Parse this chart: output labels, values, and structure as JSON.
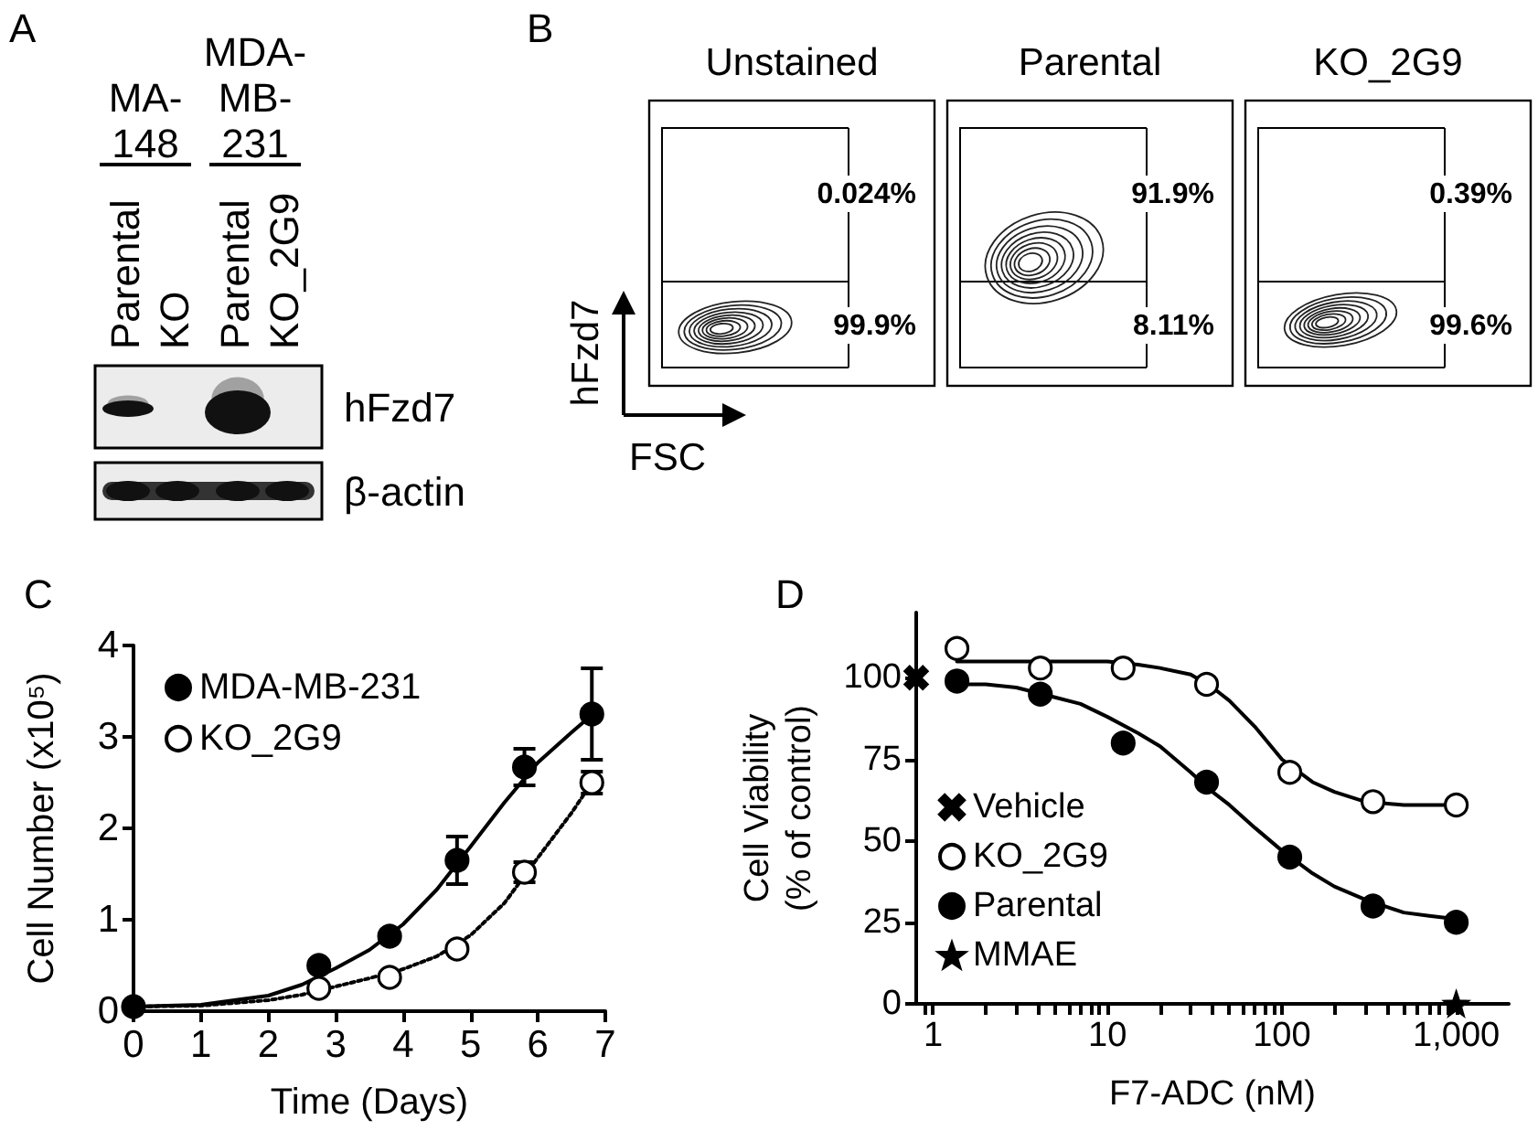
{
  "chart_data": [
    {
      "type": "other",
      "title": "A",
      "categories": [
        "Parental",
        "KO",
        "Parental",
        "KO_2G9"
      ],
      "annotations": [
        "MA-148",
        "MDA-MB-231",
        "hFzd7",
        "β-actin"
      ]
    },
    {
      "type": "other",
      "title": "B",
      "categories": [
        "Unstained",
        "Parental",
        "KO_2G9"
      ],
      "xlabel": "FSC",
      "ylabel": "hFzd7",
      "annotations": [
        "0.024%",
        "99.9%",
        "91.9%",
        "8.11%",
        "0.39%",
        "99.6%"
      ]
    },
    {
      "type": "scatter",
      "title": "C",
      "xlabel": "Time (Days)",
      "ylabel": "Cell Number (x10⁵)",
      "xlim": [
        0,
        7
      ],
      "ylim": [
        0,
        4
      ],
      "xticks": [
        0,
        1,
        2,
        3,
        4,
        5,
        6,
        7
      ],
      "yticks": [
        0,
        1,
        2,
        3,
        4
      ],
      "legend": "top left",
      "series": [
        {
          "name": "MDA-MB-231",
          "type": "scatter",
          "color": "#000000",
          "marker": "circle",
          "x": [
            0,
            2.75,
            3.8,
            4.8,
            5.8,
            6.8
          ],
          "values": [
            0.05,
            0.5,
            0.82,
            1.65,
            2.67,
            3.25
          ],
          "errors": [
            null,
            null,
            null,
            0.26,
            0.2,
            0.5
          ]
        },
        {
          "name": "KO_2G9",
          "type": "scatter",
          "color": "#ffffff",
          "marker": "circle",
          "x": [
            2.75,
            3.8,
            4.8,
            5.8,
            6.8
          ],
          "values": [
            0.25,
            0.37,
            0.68,
            1.52,
            2.5
          ],
          "errors": [
            null,
            null,
            null,
            0.11,
            0.12
          ]
        },
        {
          "type": "line",
          "color": "#000000",
          "marker": "none",
          "line_style": "solid",
          "x": [
            0,
            1,
            2,
            2.5,
            3,
            3.5,
            4,
            4.5,
            5,
            5.5,
            6,
            6.5,
            6.8
          ],
          "values": [
            0.05,
            0.07,
            0.17,
            0.29,
            0.47,
            0.67,
            0.95,
            1.33,
            1.8,
            2.28,
            2.72,
            3.05,
            3.24
          ]
        },
        {
          "type": "line",
          "color": "#000000",
          "marker": "none",
          "line_style": "dotted",
          "x": [
            0,
            1,
            2,
            2.5,
            3,
            3.5,
            4,
            4.5,
            5,
            5.5,
            6,
            6.5,
            6.8
          ],
          "values": [
            0.05,
            0.06,
            0.12,
            0.18,
            0.27,
            0.36,
            0.46,
            0.6,
            0.83,
            1.18,
            1.68,
            2.17,
            2.5
          ]
        }
      ]
    },
    {
      "type": "scatter",
      "title": "D",
      "xlabel": "F7-ADC (nM)",
      "ylabel": "Cell Viability\n(% of control)",
      "log": "x",
      "xlim": [
        0.8,
        2000
      ],
      "ylim": [
        0,
        120
      ],
      "xticks": [
        {
          "value": 0.9,
          "label": null
        },
        1,
        {
          "value": 2,
          "label": null
        },
        {
          "value": 3,
          "label": null
        },
        {
          "value": 4,
          "label": null
        },
        {
          "value": 5,
          "label": null
        },
        {
          "value": 6,
          "label": null
        },
        {
          "value": 7,
          "label": null
        },
        {
          "value": 8,
          "label": null
        },
        {
          "value": 9,
          "label": null
        },
        10,
        {
          "value": 20,
          "label": null
        },
        {
          "value": 30,
          "label": null
        },
        {
          "value": 40,
          "label": null
        },
        {
          "value": 50,
          "label": null
        },
        {
          "value": 60,
          "label": null
        },
        {
          "value": 70,
          "label": null
        },
        {
          "value": 80,
          "label": null
        },
        {
          "value": 90,
          "label": null
        },
        100,
        {
          "value": 200,
          "label": null
        },
        {
          "value": 300,
          "label": null
        },
        {
          "value": 400,
          "label": null
        },
        {
          "value": 500,
          "label": null
        },
        {
          "value": 600,
          "label": null
        },
        {
          "value": 700,
          "label": null
        },
        {
          "value": 800,
          "label": null
        },
        {
          "value": 900,
          "label": null
        },
        {
          "value": 1000,
          "label": "1,000"
        }
      ],
      "yticks": [
        0,
        25,
        50,
        75,
        100
      ],
      "legend": "bottom left",
      "series": [
        {
          "name": "Vehicle",
          "type": "scatter",
          "color": "#000000",
          "marker": "cross",
          "x": [
            0.8
          ],
          "values": [
            100
          ]
        },
        {
          "name": "KO_2G9",
          "type": "scatter",
          "color": "#ffffff",
          "marker": "circle",
          "x": [
            1.37,
            4.12,
            12.3,
            37,
            111,
            333,
            1000
          ],
          "values": [
            109,
            103,
            103,
            98,
            71,
            62,
            61
          ]
        },
        {
          "name": "Parental",
          "type": "scatter",
          "color": "#000000",
          "marker": "circle",
          "x": [
            1.37,
            4.12,
            12.3,
            37,
            111,
            333,
            1000
          ],
          "values": [
            99,
            95,
            80,
            68,
            45,
            30,
            25
          ]
        },
        {
          "name": "MMAE",
          "type": "scatter",
          "color": "#000000",
          "marker": "star",
          "x": [
            1000
          ],
          "values": [
            0
          ]
        },
        {
          "type": "line",
          "color": "#000000",
          "marker": "none",
          "line_style": "solid",
          "x": [
            1.37,
            2,
            3,
            5,
            7,
            10,
            15,
            20,
            30,
            40,
            50,
            70,
            100,
            150,
            200,
            300,
            500,
            700,
            1000
          ],
          "values": [
            105,
            105,
            105,
            105,
            105,
            105,
            104,
            103,
            101,
            97,
            93,
            85,
            75,
            68,
            65,
            62,
            61,
            61,
            61
          ]
        },
        {
          "type": "line",
          "color": "#000000",
          "marker": "none",
          "line_style": "solid",
          "x": [
            1.37,
            2,
            3,
            5,
            7,
            10,
            15,
            20,
            30,
            40,
            50,
            70,
            100,
            150,
            200,
            300,
            500,
            700,
            1000
          ],
          "values": [
            98,
            98,
            97,
            94,
            92,
            88,
            83,
            79,
            71,
            65,
            61,
            54,
            47,
            40,
            36,
            32,
            28,
            27,
            26
          ]
        }
      ]
    }
  ]
}
